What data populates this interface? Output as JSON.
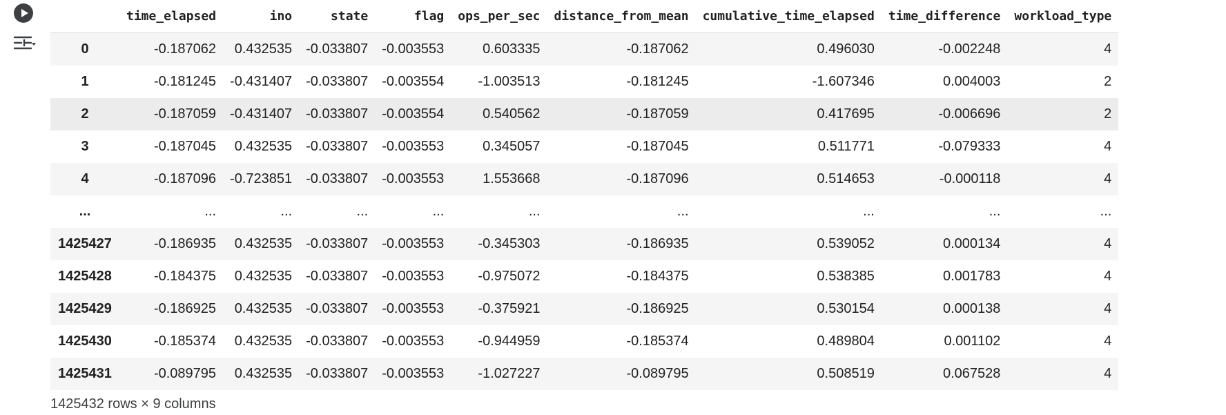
{
  "columns": [
    "",
    "time_elapsed",
    "ino",
    "state",
    "flag",
    "ops_per_sec",
    "distance_from_mean",
    "cumulative_time_elapsed",
    "time_difference",
    "workload_type"
  ],
  "rows": [
    [
      "0",
      "-0.187062",
      "0.432535",
      "-0.033807",
      "-0.003553",
      "0.603335",
      "-0.187062",
      "0.496030",
      "-0.002248",
      "4"
    ],
    [
      "1",
      "-0.181245",
      "-0.431407",
      "-0.033807",
      "-0.003554",
      "-1.003513",
      "-0.181245",
      "-1.607346",
      "0.004003",
      "2"
    ],
    [
      "2",
      "-0.187059",
      "-0.431407",
      "-0.033807",
      "-0.003554",
      "0.540562",
      "-0.187059",
      "0.417695",
      "-0.006696",
      "2"
    ],
    [
      "3",
      "-0.187045",
      "0.432535",
      "-0.033807",
      "-0.003553",
      "0.345057",
      "-0.187045",
      "0.511771",
      "-0.079333",
      "4"
    ],
    [
      "4",
      "-0.187096",
      "-0.723851",
      "-0.033807",
      "-0.003553",
      "1.553668",
      "-0.187096",
      "0.514653",
      "-0.000118",
      "4"
    ],
    [
      "...",
      "...",
      "...",
      "...",
      "...",
      "...",
      "...",
      "...",
      "...",
      "..."
    ],
    [
      "1425427",
      "-0.186935",
      "0.432535",
      "-0.033807",
      "-0.003553",
      "-0.345303",
      "-0.186935",
      "0.539052",
      "0.000134",
      "4"
    ],
    [
      "1425428",
      "-0.184375",
      "0.432535",
      "-0.033807",
      "-0.003553",
      "-0.975072",
      "-0.184375",
      "0.538385",
      "0.001783",
      "4"
    ],
    [
      "1425429",
      "-0.186925",
      "0.432535",
      "-0.033807",
      "-0.003553",
      "-0.375921",
      "-0.186925",
      "0.530154",
      "0.000138",
      "4"
    ],
    [
      "1425430",
      "-0.185374",
      "0.432535",
      "-0.033807",
      "-0.003553",
      "-0.944959",
      "-0.185374",
      "0.489804",
      "0.001102",
      "4"
    ],
    [
      "1425431",
      "-0.089795",
      "0.432535",
      "-0.033807",
      "-0.003553",
      "-1.027227",
      "-0.089795",
      "0.508519",
      "0.067528",
      "4"
    ]
  ],
  "highlighted_row": 2,
  "footer_text": "1425432 rows × 9 columns",
  "icons": {
    "run": "play-circle-icon",
    "output_toggle": "output-actions-icon"
  },
  "colors": {
    "row_stripe": "#f5f5f5",
    "row_highlight": "#ececec",
    "header_border": "#dadce0",
    "icon": "#3c4043"
  }
}
